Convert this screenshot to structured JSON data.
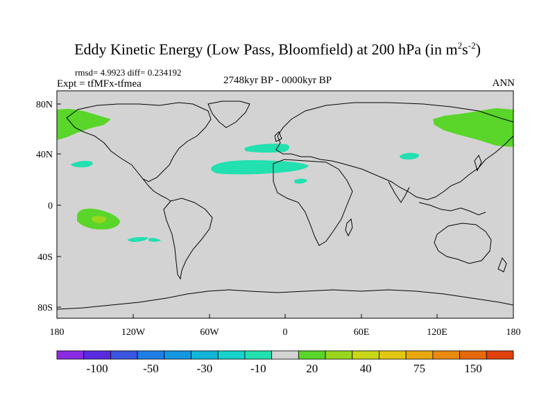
{
  "title": "Eddy Kinetic Energy (Low Pass, Bloomfield) at 200 hPa (in m",
  "title_sup1": "2",
  "title_mid": "s",
  "title_sup2": "-2",
  "title_end": ")",
  "rmsd_line": "rmsd= 4.9923 diff= 0.234192",
  "expt_line": "Expt = tfMFx-tfmea",
  "period": "2748kyr BP - 0000kyr BP",
  "season": "ANN",
  "map": {
    "lat_ticks": [
      "80N",
      "40N",
      "0",
      "40S",
      "80S"
    ],
    "lon_ticks": [
      "180",
      "120W",
      "60W",
      "0",
      "60E",
      "120E",
      "180"
    ],
    "background_color": "#d3d3d3",
    "coastline_color": "#000000"
  },
  "colorbar": {
    "colors": [
      "#8a2be2",
      "#5a2ae0",
      "#3a55e0",
      "#1e7ee6",
      "#1596e0",
      "#12b5d6",
      "#16d2cc",
      "#22e0b0",
      "#d3d3d3",
      "#5ad52a",
      "#9ad61e",
      "#c8d617",
      "#e2c712",
      "#e8a810",
      "#e88a0e",
      "#e6680c",
      "#e2400c"
    ],
    "labels": [
      "-100",
      "-50",
      "-30",
      "-10",
      "20",
      "40",
      "75",
      "150"
    ]
  },
  "anomalies": [
    {
      "region": "north-atlantic-far-west-arctic",
      "color": "#5ad52a"
    },
    {
      "region": "northeast-asia-arctic",
      "color": "#5ad52a"
    },
    {
      "region": "central-atlantic-band",
      "color": "#22e0b0"
    },
    {
      "region": "north-atlantic-small",
      "color": "#22e0b0"
    },
    {
      "region": "north-pacific-east",
      "color": "#22e0b0"
    },
    {
      "region": "central-asia",
      "color": "#22e0b0"
    },
    {
      "region": "west-africa",
      "color": "#22e0b0"
    },
    {
      "region": "south-pacific",
      "color": "#5ad52a"
    },
    {
      "region": "south-pacific-core",
      "color": "#9ad61e"
    },
    {
      "region": "south-pacific-streak",
      "color": "#22e0b0"
    }
  ]
}
